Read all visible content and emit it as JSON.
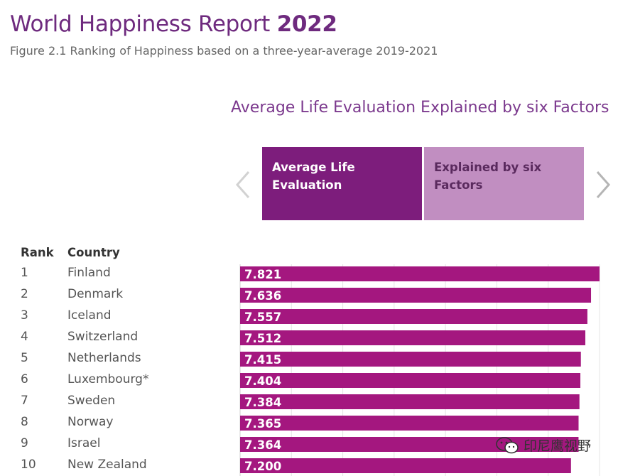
{
  "header": {
    "title_main": "World Happiness Report ",
    "title_year": "2022",
    "subtitle": "Figure 2.1 Ranking of Happiness based on a three-year-average 2019-2021"
  },
  "section": {
    "title": "Average Life Evaluation Explained by six Factors"
  },
  "tabs": [
    {
      "label": "Average Life Evaluation",
      "active": true
    },
    {
      "label": "Explained by six Factors",
      "active": false
    }
  ],
  "nav": {
    "prev_icon": "chevron-left-icon",
    "next_icon": "chevron-right-icon"
  },
  "table": {
    "rank_header": "Rank",
    "country_header": "Country"
  },
  "colors": {
    "bar": "#a4177f",
    "active_tab": "#7d1d7c",
    "inactive_tab": "#c18ec1",
    "title": "#6e2a7e"
  },
  "chart_data": {
    "type": "bar",
    "orientation": "horizontal",
    "categories": [
      "Finland",
      "Denmark",
      "Iceland",
      "Switzerland",
      "Netherlands",
      "Luxembourg*",
      "Sweden",
      "Norway",
      "Israel",
      "New Zealand"
    ],
    "ranks": [
      "1",
      "2",
      "3",
      "4",
      "5",
      "6",
      "7",
      "8",
      "9",
      "10"
    ],
    "values": [
      7.821,
      7.636,
      7.557,
      7.512,
      7.415,
      7.404,
      7.384,
      7.365,
      7.364,
      7.2
    ],
    "value_labels": [
      "7.821",
      "7.636",
      "7.557",
      "7.512",
      "7.415",
      "7.404",
      "7.384",
      "7.365",
      "7.364",
      "7.200"
    ],
    "xlim": [
      0,
      7.9
    ],
    "grid": true
  },
  "watermark": {
    "text": "印尼鹰视野",
    "icon": "wechat-icon"
  }
}
